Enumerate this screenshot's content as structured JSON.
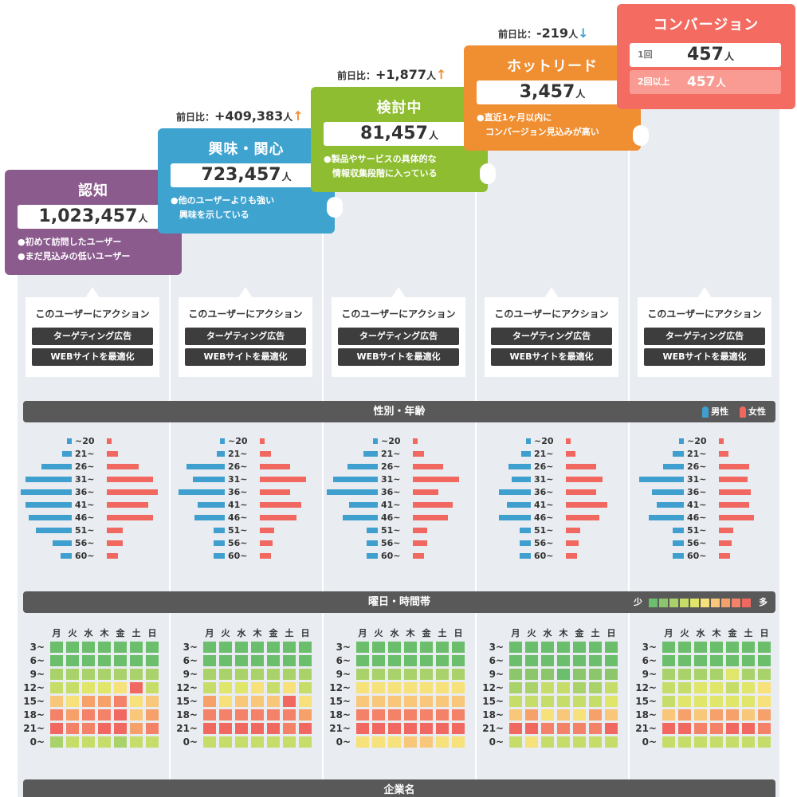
{
  "stages": [
    {
      "key": "s0",
      "title": "認知",
      "count": "1,023,457",
      "unit": "人",
      "desc": [
        "●初めて訪問したユーザー",
        "●まだ見込みの低いユーザー"
      ],
      "color": "#8b5b8e"
    },
    {
      "key": "s1",
      "title": "興味・関心",
      "count": "723,457",
      "unit": "人",
      "desc": [
        "●他のユーザーよりも強い",
        "　興味を示している"
      ],
      "color": "#3fa3d0",
      "compare": {
        "label": "前日比：",
        "value": "+409,383",
        "unit": "人",
        "arrow": "↑",
        "arrow_color": "#f08f32"
      }
    },
    {
      "key": "s2",
      "title": "検討中",
      "count": "81,457",
      "unit": "人",
      "desc": [
        "●製品やサービスの具体的な",
        "　情報収集段階に入っている"
      ],
      "color": "#8fbd31",
      "compare": {
        "label": "前日比：",
        "value": "+1,877",
        "unit": "人",
        "arrow": "↑",
        "arrow_color": "#f08f32"
      }
    },
    {
      "key": "s3",
      "title": "ホットリード",
      "count": "3,457",
      "unit": "人",
      "desc": [
        "●直近1ヶ月以内に",
        "　コンバージョン見込みが高い"
      ],
      "color": "#f08f32",
      "compare": {
        "label": "前日比：",
        "value": "-219",
        "unit": "人",
        "arrow": "↓",
        "arrow_color": "#3fa3d0"
      }
    },
    {
      "key": "s4",
      "title": "コンバージョン",
      "color": "#f36b61",
      "rows": [
        {
          "label": "1回",
          "value": "457",
          "unit": "人"
        },
        {
          "label": "2回以上",
          "value": "457",
          "unit": "人"
        }
      ]
    }
  ],
  "action": {
    "heading": "このユーザーにアクション",
    "buttons": [
      "ターゲティング広告",
      "WEBサイトを最適化"
    ]
  },
  "gender_age": {
    "title": "性別・年齢",
    "legend_male": "男性",
    "legend_female": "女性",
    "male_color": "#3fa0cf",
    "female_color": "#f16861",
    "ages": [
      "~20",
      "21~",
      "26~",
      "31~",
      "36~",
      "41~",
      "46~",
      "51~",
      "56~",
      "60~"
    ],
    "columns": [
      {
        "male": [
          6,
          12,
          38,
          58,
          64,
          58,
          54,
          45,
          24,
          14
        ],
        "female": [
          6,
          14,
          40,
          58,
          64,
          52,
          58,
          20,
          20,
          14
        ]
      },
      {
        "male": [
          6,
          10,
          48,
          40,
          58,
          34,
          38,
          14,
          14,
          14
        ],
        "female": [
          6,
          14,
          38,
          58,
          38,
          52,
          46,
          18,
          16,
          14
        ]
      },
      {
        "male": [
          6,
          18,
          38,
          56,
          64,
          36,
          44,
          14,
          14,
          14
        ],
        "female": [
          6,
          14,
          38,
          58,
          32,
          50,
          44,
          18,
          18,
          14
        ]
      },
      {
        "male": [
          6,
          12,
          28,
          24,
          40,
          30,
          40,
          14,
          14,
          14
        ],
        "female": [
          6,
          12,
          38,
          46,
          38,
          52,
          42,
          18,
          16,
          14
        ]
      },
      {
        "male": [
          6,
          14,
          26,
          56,
          40,
          34,
          44,
          14,
          14,
          14
        ],
        "female": [
          6,
          12,
          38,
          36,
          40,
          38,
          44,
          18,
          16,
          14
        ]
      }
    ]
  },
  "heatmap": {
    "title": "曜日・時間帯",
    "legend_low": "少",
    "legend_high": "多",
    "scale": [
      "#6bbe6b",
      "#8cc66a",
      "#a9d26a",
      "#c6dd6a",
      "#e0e66a",
      "#f6e17a",
      "#f8c77a",
      "#f6a06a",
      "#f48268",
      "#f16861"
    ],
    "days": [
      "月",
      "火",
      "水",
      "木",
      "金",
      "土",
      "日"
    ],
    "hours": [
      "3~",
      "6~",
      "9~",
      "12~",
      "15~",
      "18~",
      "21~",
      "0~"
    ],
    "columns": [
      [
        [
          0,
          0,
          0,
          0,
          0,
          0,
          0
        ],
        [
          0,
          0,
          0,
          0,
          0,
          0,
          0
        ],
        [
          2,
          2,
          2,
          2,
          2,
          2,
          2
        ],
        [
          3,
          3,
          4,
          4,
          5,
          9,
          3
        ],
        [
          6,
          5,
          7,
          7,
          8,
          5,
          6
        ],
        [
          8,
          7,
          8,
          8,
          9,
          6,
          7
        ],
        [
          9,
          8,
          8,
          9,
          9,
          7,
          8
        ],
        [
          2,
          3,
          3,
          3,
          2,
          3,
          3
        ]
      ],
      [
        [
          0,
          0,
          0,
          0,
          0,
          0,
          0
        ],
        [
          0,
          0,
          0,
          0,
          0,
          0,
          0
        ],
        [
          2,
          2,
          2,
          2,
          2,
          2,
          2
        ],
        [
          3,
          4,
          4,
          5,
          3,
          5,
          3
        ],
        [
          7,
          5,
          6,
          6,
          6,
          9,
          5
        ],
        [
          8,
          8,
          8,
          8,
          8,
          8,
          7
        ],
        [
          9,
          9,
          9,
          9,
          9,
          8,
          9
        ],
        [
          3,
          3,
          3,
          3,
          3,
          3,
          3
        ]
      ],
      [
        [
          0,
          0,
          0,
          0,
          0,
          0,
          0
        ],
        [
          0,
          0,
          0,
          0,
          0,
          0,
          0
        ],
        [
          2,
          2,
          2,
          2,
          2,
          2,
          2
        ],
        [
          5,
          5,
          5,
          5,
          5,
          5,
          5
        ],
        [
          6,
          6,
          6,
          6,
          6,
          6,
          6
        ],
        [
          8,
          8,
          8,
          8,
          8,
          8,
          8
        ],
        [
          9,
          9,
          9,
          9,
          9,
          9,
          9
        ],
        [
          5,
          5,
          5,
          6,
          6,
          5,
          5
        ]
      ],
      [
        [
          0,
          0,
          0,
          0,
          0,
          0,
          0
        ],
        [
          0,
          0,
          0,
          0,
          0,
          0,
          0
        ],
        [
          1,
          1,
          1,
          0,
          1,
          1,
          1
        ],
        [
          2,
          2,
          3,
          3,
          2,
          2,
          3
        ],
        [
          3,
          3,
          3,
          3,
          3,
          3,
          4
        ],
        [
          6,
          7,
          5,
          6,
          5,
          7,
          6
        ],
        [
          9,
          9,
          8,
          8,
          8,
          8,
          9
        ],
        [
          3,
          5,
          3,
          3,
          3,
          3,
          3
        ]
      ],
      [
        [
          0,
          0,
          0,
          0,
          0,
          0,
          0
        ],
        [
          0,
          0,
          0,
          0,
          0,
          0,
          0
        ],
        [
          2,
          2,
          2,
          2,
          4,
          2,
          2
        ],
        [
          3,
          3,
          4,
          4,
          3,
          4,
          5
        ],
        [
          3,
          4,
          4,
          4,
          4,
          4,
          5
        ],
        [
          6,
          7,
          6,
          7,
          7,
          6,
          7
        ],
        [
          9,
          9,
          8,
          8,
          9,
          9,
          8
        ],
        [
          3,
          3,
          3,
          3,
          3,
          3,
          3
        ]
      ]
    ]
  },
  "company": {
    "title": "企業名"
  }
}
